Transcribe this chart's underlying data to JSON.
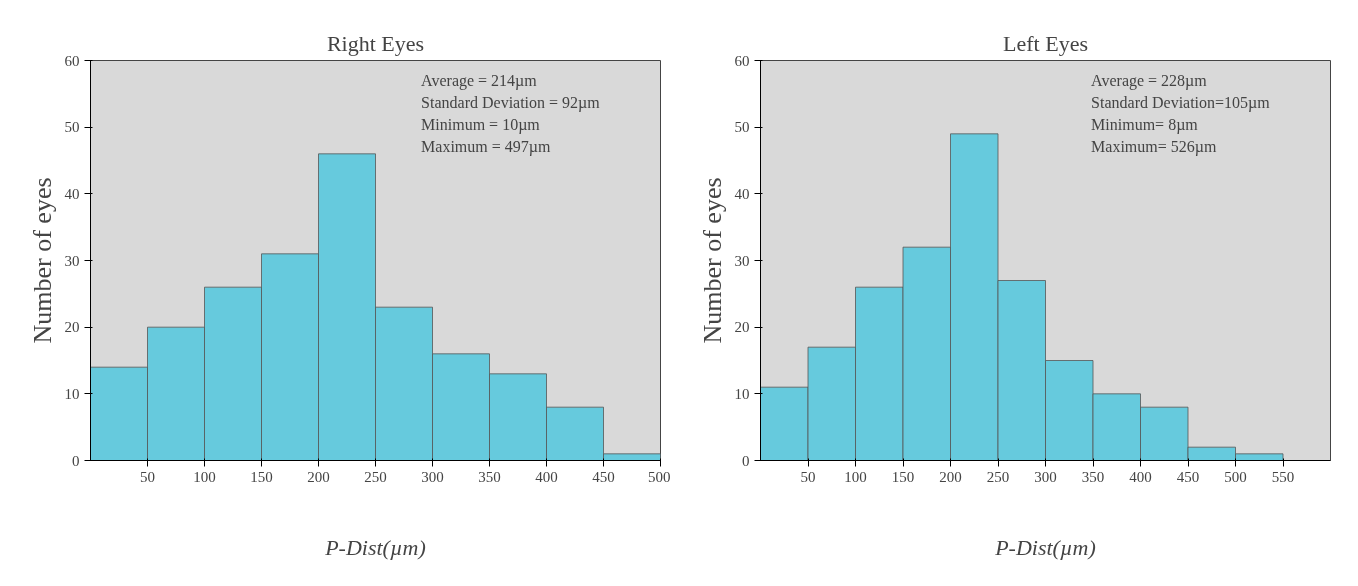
{
  "chart_data": [
    {
      "type": "histogram",
      "title": "Right Eyes",
      "xlabel": "P-Dist(µm)",
      "ylabel": "Number of eyes",
      "bins": [
        0,
        50,
        100,
        150,
        200,
        250,
        300,
        350,
        400,
        450,
        500
      ],
      "values": [
        14,
        20,
        26,
        31,
        46,
        23,
        16,
        13,
        8,
        1
      ],
      "color": "#66cadd",
      "xlim": [
        0,
        500
      ],
      "xticks": [
        50,
        100,
        150,
        200,
        250,
        300,
        350,
        400,
        450,
        500
      ],
      "ylim": [
        0,
        60
      ],
      "yticks": [
        0,
        10,
        20,
        30,
        40,
        50,
        60
      ],
      "grid": false,
      "annotations": [
        "Average =  214µm",
        "Standard Deviation = 92µm",
        "Minimum = 10µm",
        "Maximum = 497µm"
      ]
    },
    {
      "type": "histogram",
      "title": "Left Eyes",
      "xlabel": "P-Dist(µm)",
      "ylabel": "Number of eyes",
      "bins": [
        0,
        50,
        100,
        150,
        200,
        250,
        300,
        350,
        400,
        450,
        500,
        550
      ],
      "values": [
        11,
        17,
        26,
        32,
        49,
        27,
        15,
        10,
        8,
        2,
        1
      ],
      "color": "#66cadd",
      "xlim": [
        0,
        600
      ],
      "xticks": [
        50,
        100,
        150,
        200,
        250,
        300,
        350,
        400,
        450,
        500,
        550
      ],
      "ylim": [
        0,
        60
      ],
      "yticks": [
        0,
        10,
        20,
        30,
        40,
        50,
        60
      ],
      "grid": false,
      "annotations": [
        "Average =  228µm",
        "Standard Deviation=105µm",
        "Minimum= 8µm",
        "Maximum= 526µm"
      ]
    }
  ]
}
